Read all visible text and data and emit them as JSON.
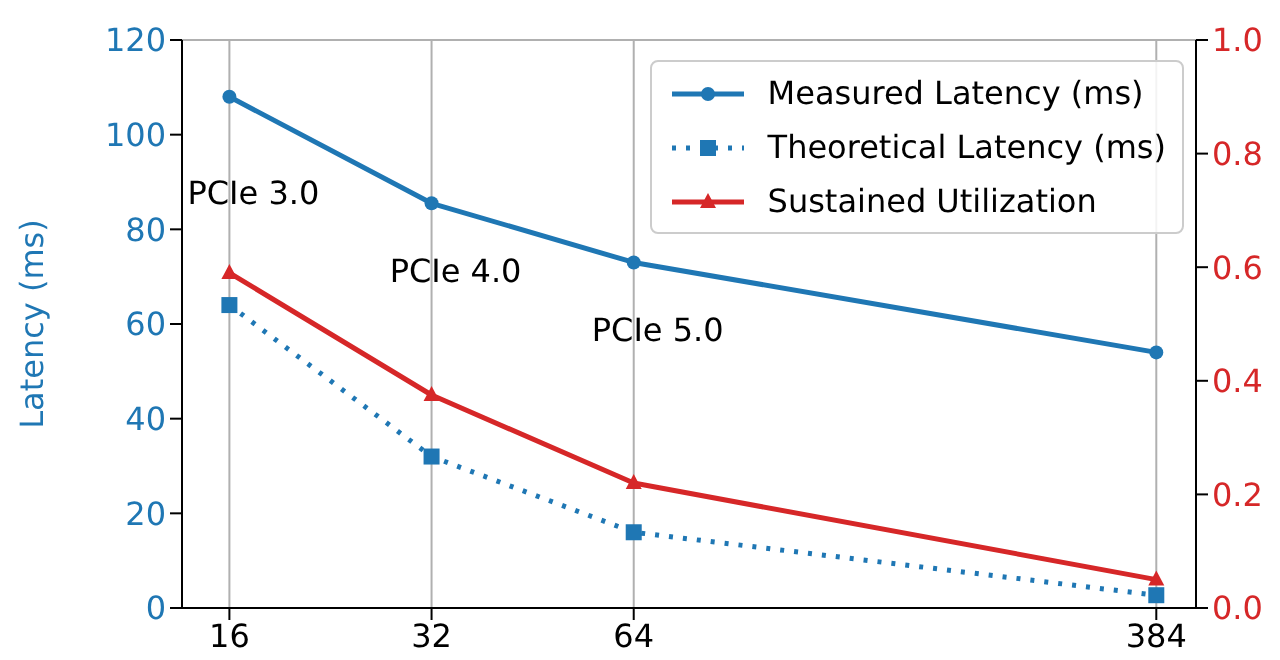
{
  "chart_data": {
    "type": "line",
    "ylabel": "Latency (ms)",
    "x": [
      16,
      32,
      64,
      384
    ],
    "log": "x",
    "xlim": [
      13.6,
      440
    ],
    "xticks": [
      16,
      32,
      64,
      384
    ],
    "ylim": [
      0,
      120
    ],
    "yticks": [
      0,
      20,
      40,
      60,
      80,
      100,
      120
    ],
    "y2lim": [
      0,
      1
    ],
    "y2ticks": [
      {
        "value": 0,
        "label": "0.0"
      },
      {
        "value": 0.2,
        "label": "0.2"
      },
      {
        "value": 0.4,
        "label": "0.4"
      },
      {
        "value": 0.6,
        "label": "0.6"
      },
      {
        "value": 0.8,
        "label": "0.8"
      },
      {
        "value": 1,
        "label": "1.0"
      }
    ],
    "series": [
      {
        "name": "Measured Latency (ms)",
        "color": "#1f77b4",
        "values": [
          108,
          85.5,
          73,
          54
        ],
        "marker": "circle",
        "line_style": "solid"
      },
      {
        "name": "Theoretical Latency (ms)",
        "color": "#1f77b4",
        "values": [
          64,
          32,
          16,
          2.7
        ],
        "marker": "square",
        "line_style": "dotted"
      },
      {
        "name": "Sustained Utilization",
        "color": "#d62728",
        "values": [
          0.59,
          0.375,
          0.22,
          0.05
        ],
        "marker": "triangle",
        "line_style": "solid",
        "axis": "y2"
      }
    ],
    "annotations": [
      "PCIe 3.0",
      "PCIe 4.0",
      "PCIe 5.0"
    ],
    "grid": true,
    "legend": "top right"
  }
}
